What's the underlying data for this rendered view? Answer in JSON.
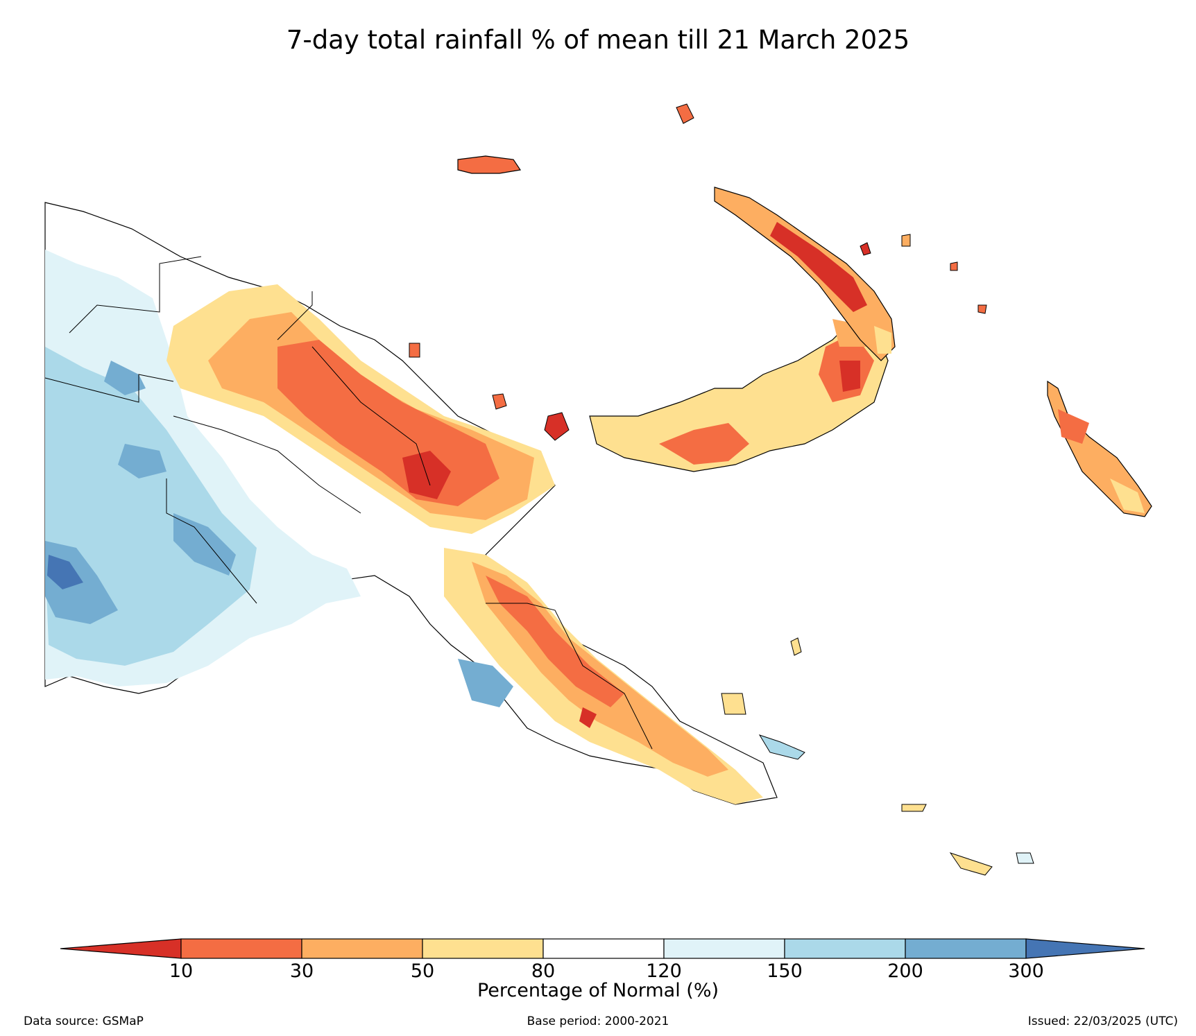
{
  "title": "7-day total rainfall % of mean till 21 March 2025",
  "legend": {
    "title": "Percentage of Normal (%)",
    "ticks": [
      "10",
      "30",
      "50",
      "80",
      "120",
      "150",
      "200",
      "300"
    ],
    "colors": {
      "lt10": "#d73027",
      "c10_30": "#f46d43",
      "c30_50": "#fdae61",
      "c50_80": "#fee090",
      "c80_120": "#ffffff",
      "c120_150": "#e0f3f8",
      "c150_200": "#abd9e9",
      "c200_300": "#74add1",
      "gt300": "#4575b4"
    }
  },
  "footer": {
    "source": "Data source: GSMaP",
    "base_period": "Base period: 2000-2021",
    "issued": "Issued: 22/03/2025 (UTC)"
  }
}
